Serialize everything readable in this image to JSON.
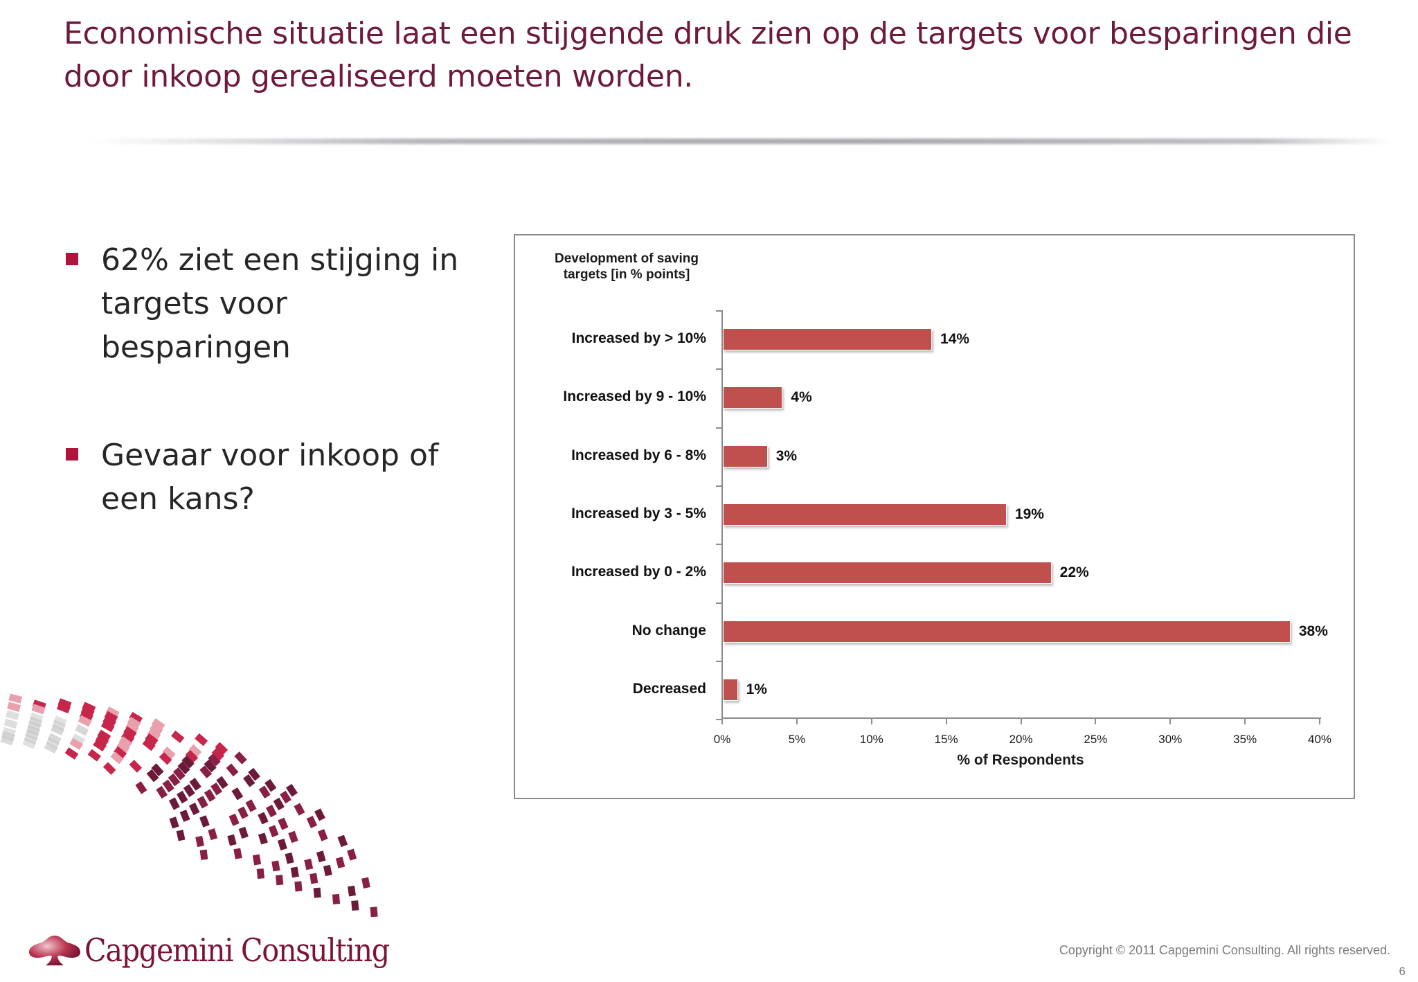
{
  "slide": {
    "title": "Economische situatie laat een stijgende druk zien op de targets voor besparingen die door inkoop gerealiseerd moeten worden.",
    "bullets": [
      {
        "text": "62% ziet een stijging in targets voor besparingen"
      },
      {
        "text": "Gevaar voor inkoop of een kans?"
      }
    ],
    "footer": {
      "logo_text": "Capgemini Consulting",
      "copyright": "Copyright © 2011 Capgemini Consulting. All rights reserved.",
      "page_number": "6"
    },
    "colors": {
      "title": "#6E1A3C",
      "bullet_marker": "#B0143C",
      "bar": "#C0504D",
      "logo": "#7A1538"
    }
  },
  "chart_data": {
    "type": "bar",
    "orientation": "horizontal",
    "title": "Development of saving targets [in % points]",
    "categories": [
      "Increased by > 10%",
      "Increased by 9 - 10%",
      "Increased by 6 - 8%",
      "Increased by 3 - 5%",
      "Increased by 0 - 2%",
      "No change",
      "Decreased"
    ],
    "values": [
      14,
      4,
      3,
      19,
      22,
      38,
      1
    ],
    "value_labels": [
      "14%",
      "4%",
      "3%",
      "19%",
      "22%",
      "38%",
      "1%"
    ],
    "xlabel": "% of Respondents",
    "ylabel": "",
    "xlim": [
      0,
      40
    ],
    "x_ticks": [
      "0%",
      "5%",
      "10%",
      "15%",
      "20%",
      "25%",
      "30%",
      "35%",
      "40%"
    ],
    "grid": false,
    "legend": null,
    "bar_color": "#C0504D"
  }
}
